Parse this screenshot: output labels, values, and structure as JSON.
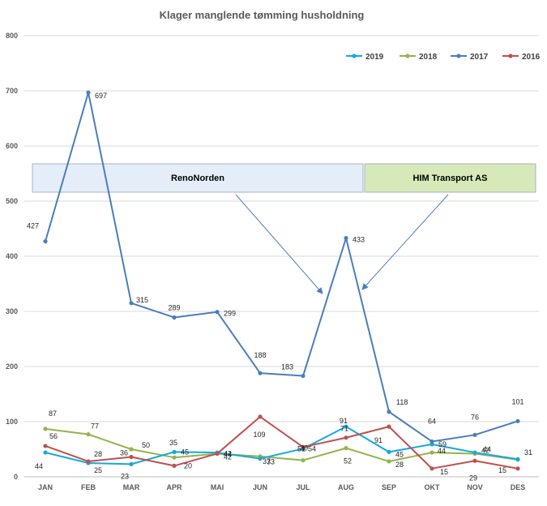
{
  "chart_data": {
    "type": "line",
    "title": "Klager manglende tømming husholdning",
    "categories": [
      "JAN",
      "FEB",
      "MAR",
      "APR",
      "MAI",
      "JUN",
      "JUL",
      "AUG",
      "SEP",
      "OKT",
      "NOV",
      "DES"
    ],
    "ylim": [
      0,
      800
    ],
    "yticks": [
      0,
      100,
      200,
      300,
      400,
      500,
      600,
      700,
      800
    ],
    "grid": true,
    "legend_position": "top-right",
    "series": [
      {
        "name": "2019",
        "color": "#13A9DE",
        "values": [
          44,
          25,
          23,
          45,
          44,
          33,
          51,
          91,
          45,
          59,
          44,
          32
        ]
      },
      {
        "name": "2018",
        "color": "#93B44C",
        "values": [
          87,
          77,
          50,
          35,
          42,
          37,
          30,
          52,
          28,
          44,
          42,
          31
        ]
      },
      {
        "name": "2017",
        "color": "#4A7EBB",
        "values": [
          427,
          697,
          315,
          289,
          299,
          188,
          183,
          433,
          118,
          64,
          76,
          101
        ]
      },
      {
        "name": "2016",
        "color": "#C0504D",
        "values": [
          56,
          28,
          36,
          20,
          42,
          109,
          54,
          71,
          91,
          15,
          29,
          15
        ]
      }
    ],
    "annotations": [
      {
        "text": "RenoNorden",
        "fill": "#E5EEF8",
        "stroke": "#A5B4C8"
      },
      {
        "text": "HIM Transport AS",
        "fill": "#D7E9B9",
        "stroke": "#A5B4C8"
      }
    ]
  }
}
